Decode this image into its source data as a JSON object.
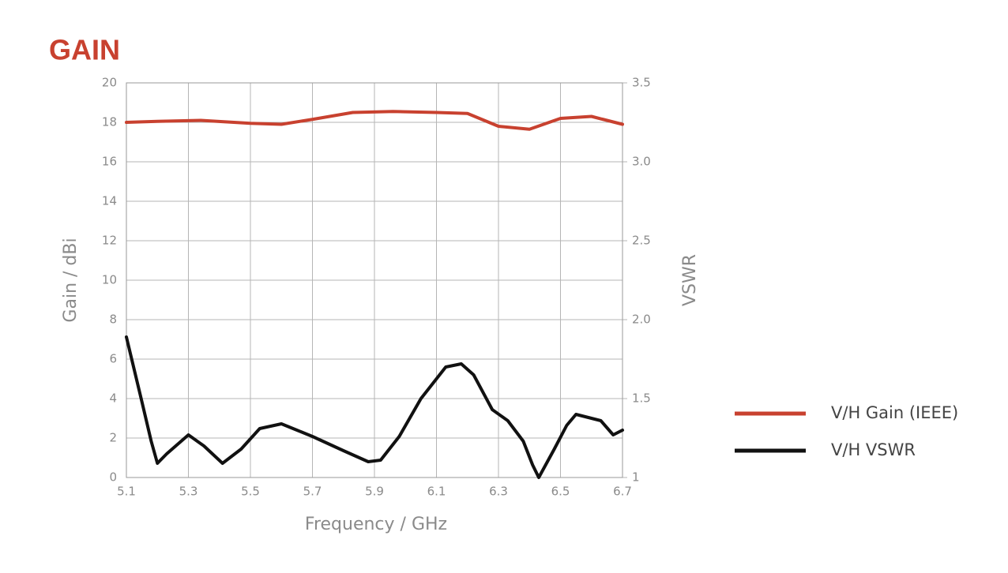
{
  "chart_data": {
    "type": "line",
    "title": "GAIN",
    "x_label": "Frequency / GHz",
    "y_label": "Gain / dBi",
    "y2_label": "VSWR",
    "grid": true,
    "legend_position": "right",
    "xlim": [
      5.1,
      6.7
    ],
    "xticks": [
      5.1,
      5.3,
      5.5,
      5.7,
      5.9,
      6.1,
      6.3,
      6.5,
      6.7
    ],
    "ylim": [
      0,
      20
    ],
    "yticks": [
      0,
      2,
      4,
      6,
      8,
      10,
      12,
      14,
      16,
      18,
      20
    ],
    "y2lim": [
      1,
      3.5
    ],
    "y2ticks": [
      1,
      1.5,
      {
        "value": 2,
        "label": "2.0"
      },
      2.5,
      {
        "value": 3,
        "label": "3.0"
      },
      3.5
    ],
    "series": [
      {
        "name": "V/H Gain (IEEE)",
        "color": "#c8412f",
        "x": [
          5.1,
          5.2,
          5.34,
          5.5,
          5.6,
          5.7,
          5.83,
          5.96,
          6.1,
          6.2,
          6.3,
          6.4,
          6.5,
          6.6,
          6.7
        ],
        "values": [
          18.0,
          18.05,
          18.1,
          17.95,
          17.9,
          18.15,
          18.5,
          18.55,
          18.5,
          18.45,
          17.8,
          17.65,
          18.2,
          18.3,
          17.9
        ]
      },
      {
        "name": "V/H VSWR",
        "color": "#111111",
        "axis": "y2",
        "x": [
          5.1,
          5.15,
          5.18,
          5.2,
          5.23,
          5.3,
          5.35,
          5.41,
          5.47,
          5.53,
          5.6,
          5.65,
          5.7,
          5.8,
          5.88,
          5.92,
          5.98,
          6.05,
          6.13,
          6.18,
          6.22,
          6.28,
          6.33,
          6.38,
          6.41,
          6.43,
          6.48,
          6.52,
          6.55,
          6.63,
          6.67,
          6.7
        ],
        "values": [
          1.89,
          1.48,
          1.23,
          1.09,
          1.15,
          1.27,
          1.2,
          1.09,
          1.18,
          1.31,
          1.34,
          1.3,
          1.26,
          1.17,
          1.1,
          1.11,
          1.26,
          1.5,
          1.7,
          1.72,
          1.65,
          1.43,
          1.36,
          1.23,
          1.08,
          1.0,
          1.18,
          1.33,
          1.4,
          1.36,
          1.27,
          1.3
        ]
      }
    ]
  }
}
